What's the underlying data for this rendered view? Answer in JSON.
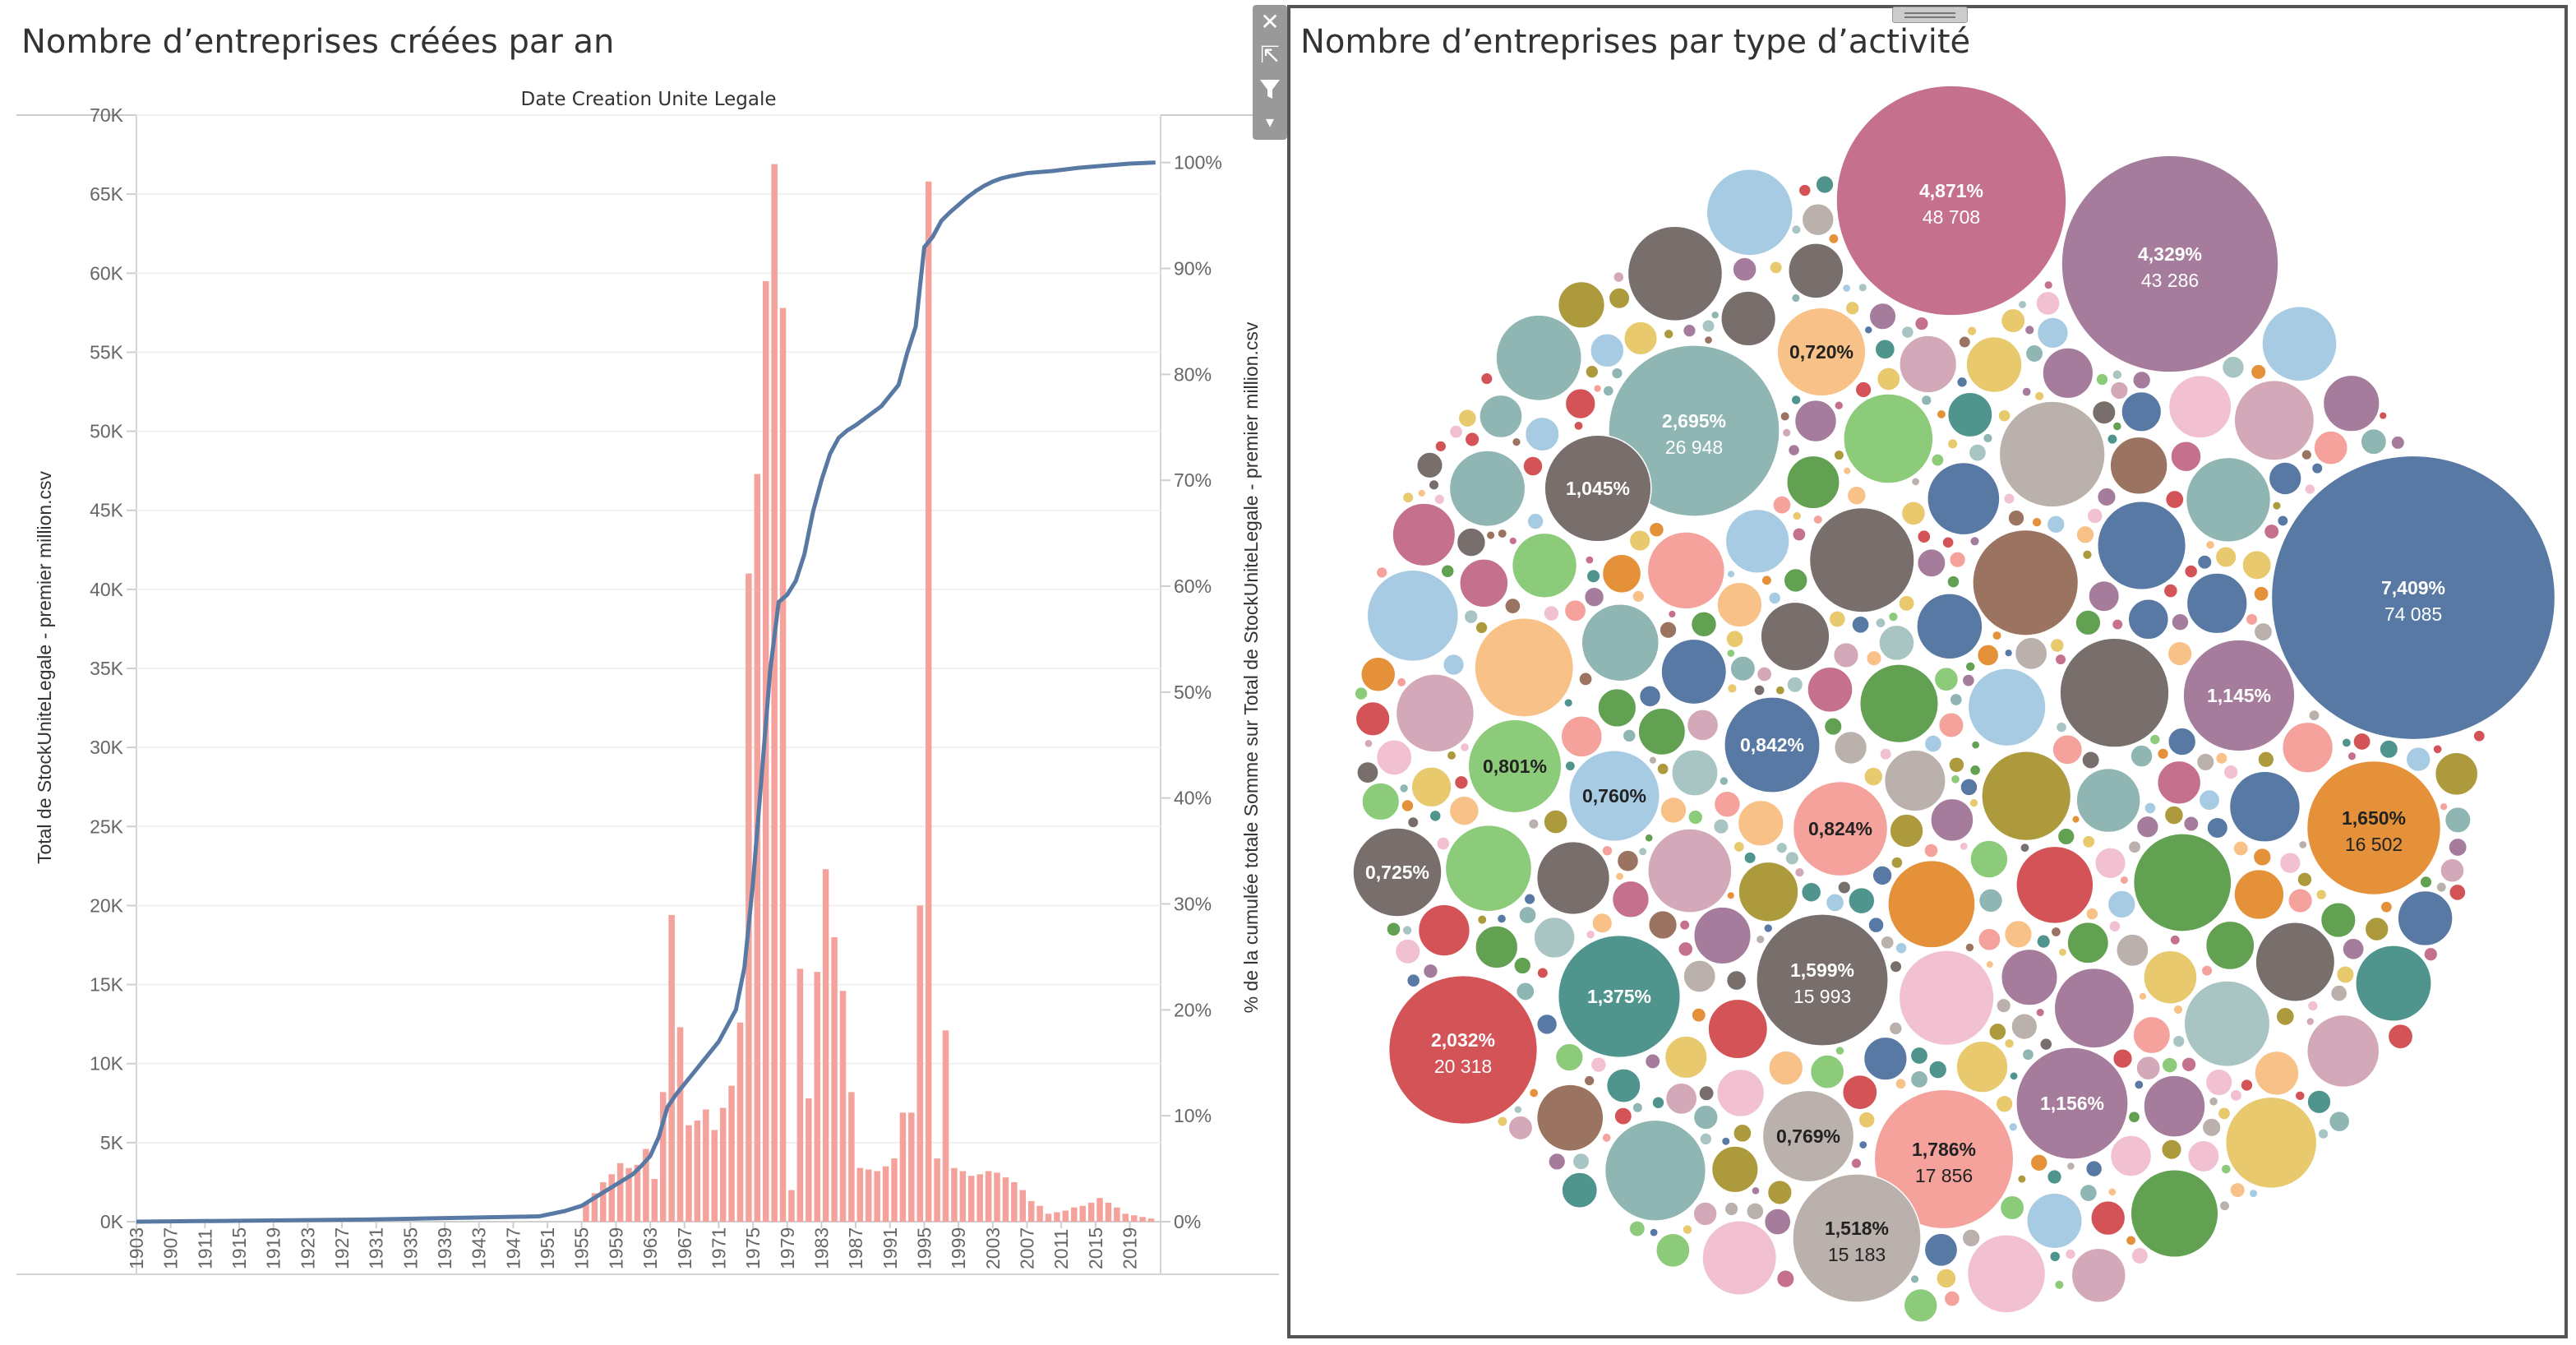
{
  "left_title": "Nombre d’entreprises créées par an",
  "right_title": "Nombre d’entreprises par type d’activité",
  "toolbar": {
    "close_icon": "close-icon",
    "popout_icon": "external-link-icon",
    "filter_icon": "filter-icon",
    "menu_icon": "caret-down-icon"
  },
  "chart_data": [
    {
      "type": "bar",
      "title": "Nombre d’entreprises créées par an",
      "header": "Date Creation Unite Legale",
      "ylabel": "Total de StockUniteLegale - premier million.csv",
      "y2label": "% de la cumulée totale Somme sur Total de StockUniteLegale - premier million.csv",
      "ylim": [
        0,
        70000
      ],
      "y2lim": [
        0,
        100
      ],
      "yticks": [
        "0K",
        "5K",
        "10K",
        "15K",
        "20K",
        "25K",
        "30K",
        "35K",
        "40K",
        "45K",
        "50K",
        "55K",
        "60K",
        "65K",
        "70K"
      ],
      "y2ticks": [
        "0%",
        "10%",
        "20%",
        "30%",
        "40%",
        "50%",
        "60%",
        "70%",
        "80%",
        "90%",
        "100%"
      ],
      "xticks": [
        "1903",
        "1907",
        "1911",
        "1915",
        "1919",
        "1923",
        "1927",
        "1931",
        "1935",
        "1939",
        "1943",
        "1947",
        "1951",
        "1955",
        "1959",
        "1963",
        "1967",
        "1971",
        "1975",
        "1979",
        "1983",
        "1987",
        "1991",
        "1995",
        "1999",
        "2003",
        "2007",
        "2011",
        "2015",
        "2019"
      ],
      "bar_color": "#f4a29b",
      "line_color": "#5779a3",
      "x": [
        1955,
        1956,
        1957,
        1958,
        1959,
        1960,
        1961,
        1962,
        1963,
        1964,
        1965,
        1966,
        1967,
        1968,
        1969,
        1970,
        1971,
        1972,
        1973,
        1974,
        1975,
        1976,
        1977,
        1978,
        1979,
        1980,
        1981,
        1982,
        1983,
        1984,
        1985,
        1986,
        1987,
        1988,
        1989,
        1990,
        1991,
        1992,
        1993,
        1994,
        1995,
        1996,
        1997,
        1998,
        1999,
        2000,
        2001,
        2002,
        2003,
        2004,
        2005,
        2006,
        2007,
        2008,
        2009,
        2010,
        2011,
        2012,
        2013,
        2014,
        2015,
        2016,
        2017,
        2018,
        2019,
        2020,
        2021
      ],
      "values": [
        1200,
        1800,
        2500,
        3000,
        3700,
        3400,
        3600,
        4600,
        2700,
        8200,
        19400,
        12300,
        6100,
        6400,
        7100,
        5800,
        7200,
        8600,
        12600,
        41000,
        47300,
        59500,
        66900,
        57800,
        2000,
        16000,
        7800,
        15800,
        22300,
        18000,
        14600,
        8200,
        3400,
        3300,
        3200,
        3500,
        4000,
        6900,
        6900,
        20000,
        65800,
        4000,
        12100,
        3400,
        3200,
        2900,
        3000,
        3200,
        3100,
        2800,
        2500,
        2000,
        1300,
        1000,
        500,
        600,
        700,
        900,
        1000,
        1200,
        1500,
        1200,
        900,
        500,
        400,
        300,
        200
      ],
      "cumulative_pct": [
        [
          1903,
          0.0
        ],
        [
          1930,
          0.2
        ],
        [
          1950,
          0.5
        ],
        [
          1953,
          1.0
        ],
        [
          1955,
          1.5
        ],
        [
          1957,
          2.5
        ],
        [
          1959,
          3.5
        ],
        [
          1961,
          4.5
        ],
        [
          1962,
          5.3
        ],
        [
          1963,
          6.2
        ],
        [
          1964,
          8.0
        ],
        [
          1965,
          10.8
        ],
        [
          1966,
          12.0
        ],
        [
          1967,
          13.0
        ],
        [
          1968,
          14.0
        ],
        [
          1969,
          15.0
        ],
        [
          1970,
          16.0
        ],
        [
          1971,
          17.0
        ],
        [
          1972,
          18.5
        ],
        [
          1973,
          20.0
        ],
        [
          1974,
          24.0
        ],
        [
          1975,
          32.0
        ],
        [
          1976,
          42.0
        ],
        [
          1977,
          52.0
        ],
        [
          1978,
          58.5
        ],
        [
          1979,
          59.2
        ],
        [
          1980,
          60.5
        ],
        [
          1981,
          63.0
        ],
        [
          1982,
          67.0
        ],
        [
          1983,
          70.0
        ],
        [
          1984,
          72.5
        ],
        [
          1985,
          74.0
        ],
        [
          1986,
          74.7
        ],
        [
          1987,
          75.2
        ],
        [
          1988,
          75.8
        ],
        [
          1989,
          76.4
        ],
        [
          1990,
          77.0
        ],
        [
          1991,
          78.0
        ],
        [
          1992,
          79.0
        ],
        [
          1993,
          82.0
        ],
        [
          1994,
          84.5
        ],
        [
          1995,
          92.0
        ],
        [
          1996,
          93.0
        ],
        [
          1997,
          94.5
        ],
        [
          1998,
          95.3
        ],
        [
          1999,
          96.0
        ],
        [
          2000,
          96.7
        ],
        [
          2001,
          97.3
        ],
        [
          2002,
          97.8
        ],
        [
          2003,
          98.2
        ],
        [
          2004,
          98.5
        ],
        [
          2005,
          98.7
        ],
        [
          2007,
          99.0
        ],
        [
          2010,
          99.2
        ],
        [
          2013,
          99.5
        ],
        [
          2016,
          99.7
        ],
        [
          2019,
          99.9
        ],
        [
          2022,
          100.0
        ]
      ]
    },
    {
      "type": "bubble",
      "title": "Nombre d’entreprises par type d’activité",
      "labeled_bubbles": [
        {
          "pct": "7,409%",
          "count": "74 085",
          "value": 74085,
          "color": "#5779a3"
        },
        {
          "pct": "4,871%",
          "count": "48 708",
          "value": 48708,
          "color": "#c5718d"
        },
        {
          "pct": "4,329%",
          "count": "43 286",
          "value": 43286,
          "color": "#a67c9c"
        },
        {
          "pct": "2,695%",
          "count": "26 948",
          "value": 26948,
          "color": "#8fb6b3"
        },
        {
          "pct": "2,032%",
          "count": "20 318",
          "value": 20318,
          "color": "#d35356"
        },
        {
          "pct": "1,786%",
          "count": "17 856",
          "value": 17856,
          "color": "#f4a29b"
        },
        {
          "pct": "1,650%",
          "count": "16 502",
          "value": 16502,
          "color": "#e4913a"
        },
        {
          "pct": "1,599%",
          "count": "15 993",
          "value": 15993,
          "color": "#786e6c"
        },
        {
          "pct": "1,518%",
          "count": "15 183",
          "value": 15183,
          "color": "#bab0ac"
        },
        {
          "pct": "1,375%",
          "count": "",
          "value": 13750,
          "color": "#4f958e"
        },
        {
          "pct": "1,156%",
          "count": "",
          "value": 11560,
          "color": "#a67c9c"
        },
        {
          "pct": "1,145%",
          "count": "",
          "value": 11450,
          "color": "#a67c9c"
        },
        {
          "pct": "1,045%",
          "count": "",
          "value": 10450,
          "color": "#786e6c"
        },
        {
          "pct": "0,842%",
          "count": "",
          "value": 8420,
          "color": "#5779a3"
        },
        {
          "pct": "0,824%",
          "count": "",
          "value": 8240,
          "color": "#f4a29b"
        },
        {
          "pct": "0,801%",
          "count": "",
          "value": 8010,
          "color": "#8ccb7a"
        },
        {
          "pct": "0,769%",
          "count": "",
          "value": 7690,
          "color": "#bab0ac"
        },
        {
          "pct": "0,760%",
          "count": "",
          "value": 7600,
          "color": "#a8cbe4"
        },
        {
          "pct": "0,725%",
          "count": "",
          "value": 7250,
          "color": "#786e6c"
        },
        {
          "pct": "0,720%",
          "count": "",
          "value": 7200,
          "color": "#f8c188"
        }
      ],
      "palette": [
        "#5779a3",
        "#e4913a",
        "#d35356",
        "#8fb6b3",
        "#4f958e",
        "#62a052",
        "#e8c96d",
        "#a67c9c",
        "#f4a29b",
        "#9b7461",
        "#bab0ac",
        "#786e6c",
        "#a8cbe4",
        "#8ccb7a",
        "#f8c188",
        "#f1c1d2",
        "#d3a8b9",
        "#ad9a3c",
        "#c5718d",
        "#a9c5c3"
      ]
    }
  ]
}
